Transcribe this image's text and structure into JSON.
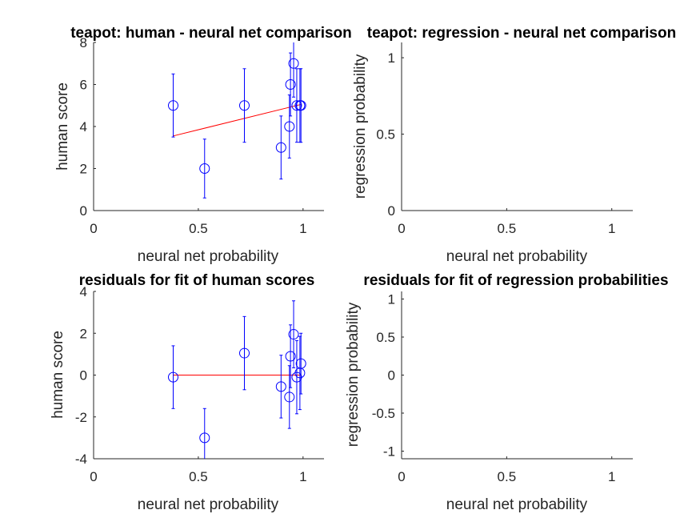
{
  "chart_data": [
    {
      "type": "scatter",
      "title": "teapot: human - neural net comparison",
      "xlabel": "neural net probability",
      "ylabel": "human score",
      "xlim": [
        0,
        1.1
      ],
      "ylim": [
        0,
        8
      ],
      "xticks": [
        0,
        0.5,
        1
      ],
      "xtick_labels": [
        "0",
        "0.5",
        "1"
      ],
      "yticks": [
        0,
        2,
        4,
        6,
        8
      ],
      "ytick_labels": [
        "0",
        "2",
        "4",
        "6",
        "8"
      ],
      "points": [
        {
          "x": 0.38,
          "y": 5,
          "err": 1.5
        },
        {
          "x": 0.53,
          "y": 2,
          "err": 1.4
        },
        {
          "x": 0.72,
          "y": 5,
          "err": 1.75
        },
        {
          "x": 0.895,
          "y": 3,
          "err": 1.5
        },
        {
          "x": 0.935,
          "y": 4,
          "err": 1.5
        },
        {
          "x": 0.94,
          "y": 6,
          "err": 1.5
        },
        {
          "x": 0.955,
          "y": 7,
          "err": 1.6
        },
        {
          "x": 0.97,
          "y": 5,
          "err": 1.75
        },
        {
          "x": 0.985,
          "y": 5,
          "err": 1.75
        },
        {
          "x": 0.99,
          "y": 5,
          "err": 1.75
        }
      ],
      "fit_line": {
        "x": [
          0.38,
          0.99
        ],
        "y": [
          3.55,
          5.05
        ]
      },
      "marker_color": "#0000ff",
      "fit_color": "#ff0000"
    },
    {
      "type": "scatter",
      "title": "teapot: regression - neural net comparison",
      "xlabel": "neural net probability",
      "ylabel": "regression probability",
      "xlim": [
        0,
        1.1
      ],
      "ylim": [
        0,
        1.1
      ],
      "xticks": [
        0,
        0.5,
        1
      ],
      "xtick_labels": [
        "0",
        "0.5",
        "1"
      ],
      "yticks": [
        0,
        0.5,
        1
      ],
      "ytick_labels": [
        "0",
        "0.5",
        "1"
      ],
      "points": [],
      "fit_line": null
    },
    {
      "type": "scatter",
      "title": "residuals for fit of human scores",
      "xlabel": "neural net probability",
      "ylabel": "human score",
      "xlim": [
        0,
        1.1
      ],
      "ylim": [
        -4,
        4
      ],
      "xticks": [
        0,
        0.5,
        1
      ],
      "xtick_labels": [
        "0",
        "0.5",
        "1"
      ],
      "yticks": [
        -4,
        -2,
        0,
        2,
        4
      ],
      "ytick_labels": [
        "-4",
        "-2",
        "0",
        "2",
        "4"
      ],
      "points": [
        {
          "x": 0.38,
          "y": -0.1,
          "err": 1.5
        },
        {
          "x": 0.53,
          "y": -3.0,
          "err": 1.4
        },
        {
          "x": 0.72,
          "y": 1.05,
          "err": 1.75
        },
        {
          "x": 0.895,
          "y": -0.55,
          "err": 1.5
        },
        {
          "x": 0.935,
          "y": -1.05,
          "err": 1.5
        },
        {
          "x": 0.94,
          "y": 0.9,
          "err": 1.5
        },
        {
          "x": 0.955,
          "y": 1.95,
          "err": 1.6
        },
        {
          "x": 0.97,
          "y": -0.1,
          "err": 1.75
        },
        {
          "x": 0.985,
          "y": 0.1,
          "err": 1.75
        },
        {
          "x": 0.99,
          "y": 0.55,
          "err": 1.45
        }
      ],
      "fit_line": {
        "x": [
          0.38,
          0.99
        ],
        "y": [
          0,
          0
        ]
      },
      "marker_color": "#0000ff",
      "fit_color": "#ff0000"
    },
    {
      "type": "scatter",
      "title": "residuals for fit of regression probabilities",
      "xlabel": "neural net probability",
      "ylabel": "regression probability",
      "xlim": [
        0,
        1.1
      ],
      "ylim": [
        -1.1,
        1.1
      ],
      "xticks": [
        0,
        0.5,
        1
      ],
      "xtick_labels": [
        "0",
        "0.5",
        "1"
      ],
      "yticks": [
        -1,
        -0.5,
        0,
        0.5,
        1
      ],
      "ytick_labels": [
        "-1",
        "-0.5",
        "0",
        "0.5",
        "1"
      ],
      "points": [],
      "fit_line": null
    }
  ]
}
